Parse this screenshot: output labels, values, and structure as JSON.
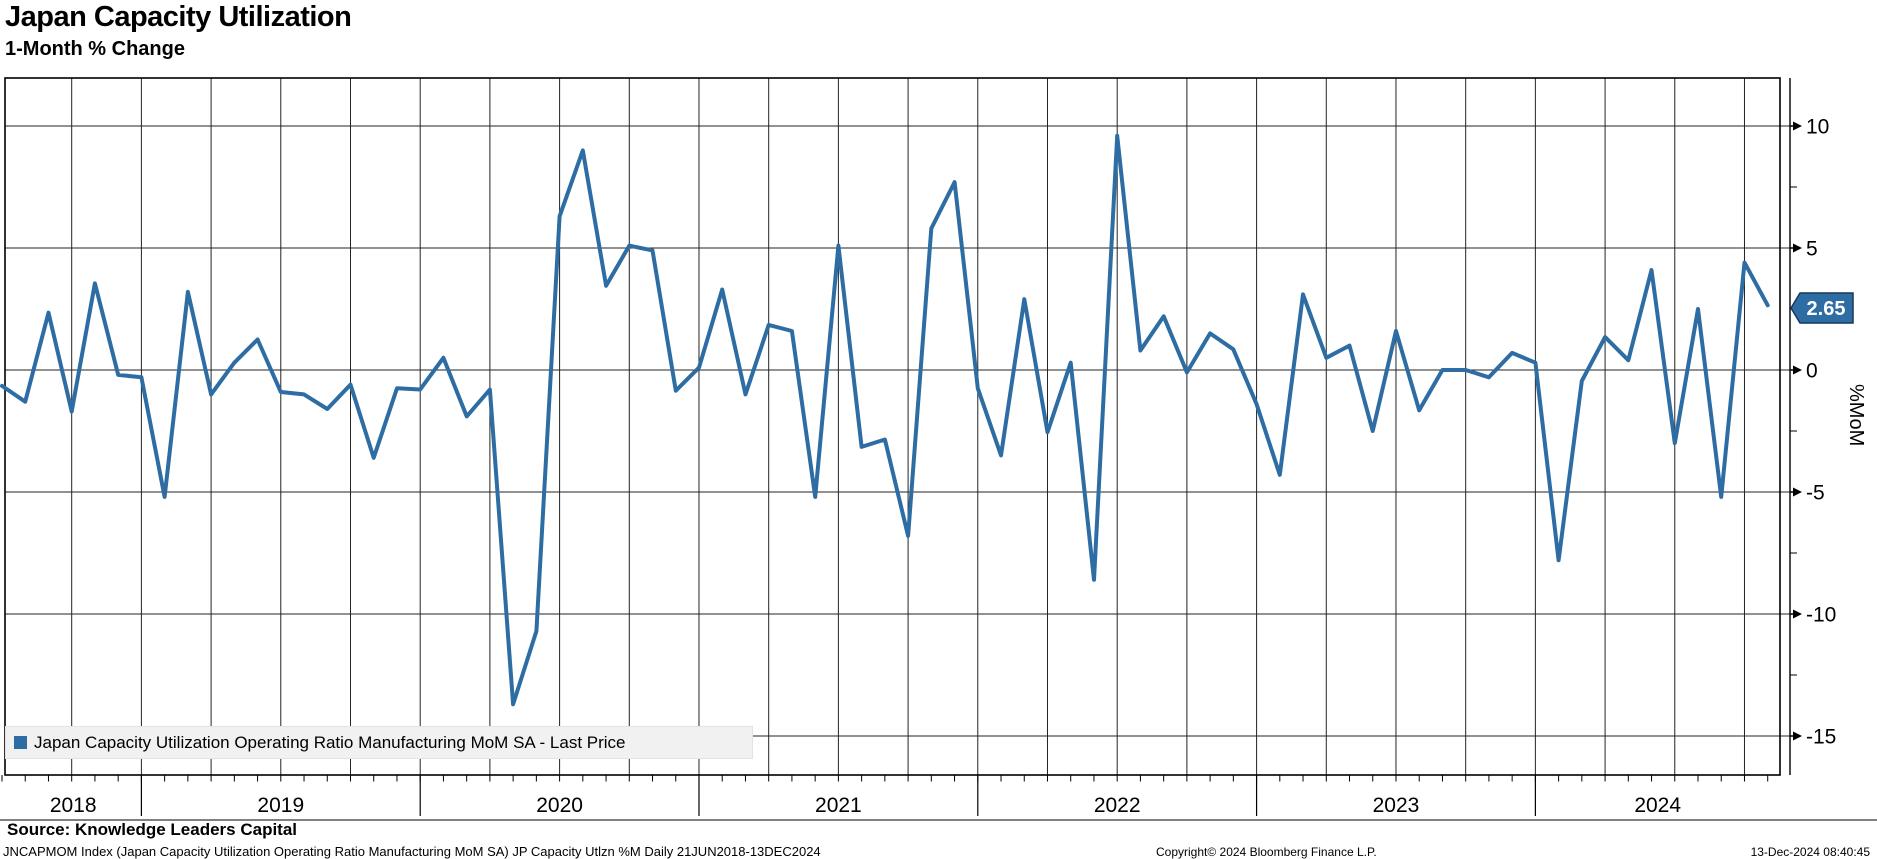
{
  "header": {
    "title": "Japan Capacity Utilization",
    "subtitle": "1-Month % Change"
  },
  "legend": {
    "label": "Japan Capacity Utilization Operating Ratio Manufacturing MoM SA - Last Price"
  },
  "y_axis": {
    "unit_label": "%MoM",
    "last_price": "2.65"
  },
  "footer": {
    "source": "Source: Knowledge Leaders Capital",
    "ticker_line": "JNCAPMOM Index (Japan Capacity Utilization Operating Ratio Manufacturing MoM SA) JP Capacity Utlzn %M  Daily 21JUN2018-13DEC2024",
    "copyright": "Copyright© 2024 Bloomberg Finance L.P.",
    "timestamp": "13-Dec-2024 08:40:45"
  },
  "chart_data": {
    "type": "line",
    "title": "Japan Capacity Utilization",
    "subtitle": "1-Month % Change",
    "ylabel": "%MoM",
    "ylim": [
      -16.3,
      12
    ],
    "yticks_major": [
      10,
      5,
      0,
      -5,
      -10,
      -15
    ],
    "yticks_minor": [
      7.5,
      2.5,
      -2.5,
      -7.5,
      -12.5
    ],
    "x_year_labels": [
      "2018",
      "2019",
      "2020",
      "2021",
      "2022",
      "2023",
      "2024"
    ],
    "grid": "on",
    "legend_position": "bottom-left",
    "date_range": "21JUN2018-13DEC2024",
    "last_price": 2.65,
    "x": [
      "Jun 2018",
      "Jul 2018",
      "Aug 2018",
      "Sep 2018",
      "Oct 2018",
      "Nov 2018",
      "Dec 2018",
      "Jan 2019",
      "Feb 2019",
      "Mar 2019",
      "Apr 2019",
      "May 2019",
      "Jun 2019",
      "Jul 2019",
      "Aug 2019",
      "Sep 2019",
      "Oct 2019",
      "Nov 2019",
      "Dec 2019",
      "Jan 2020",
      "Feb 2020",
      "Mar 2020",
      "Apr 2020",
      "May 2020",
      "Jun 2020",
      "Jul 2020",
      "Aug 2020",
      "Sep 2020",
      "Oct 2020",
      "Nov 2020",
      "Dec 2020",
      "Jan 2021",
      "Feb 2021",
      "Mar 2021",
      "Apr 2021",
      "May 2021",
      "Jun 2021",
      "Jul 2021",
      "Aug 2021",
      "Sep 2021",
      "Oct 2021",
      "Nov 2021",
      "Dec 2021",
      "Jan 2022",
      "Feb 2022",
      "Mar 2022",
      "Apr 2022",
      "May 2022",
      "Jun 2022",
      "Jul 2022",
      "Aug 2022",
      "Sep 2022",
      "Oct 2022",
      "Nov 2022",
      "Dec 2022",
      "Jan 2023",
      "Feb 2023",
      "Mar 2023",
      "Apr 2023",
      "May 2023",
      "Jun 2023",
      "Jul 2023",
      "Aug 2023",
      "Sep 2023",
      "Oct 2023",
      "Nov 2023",
      "Dec 2023",
      "Jan 2024",
      "Feb 2024",
      "Mar 2024",
      "Apr 2024",
      "May 2024",
      "Jun 2024",
      "Jul 2024",
      "Aug 2024",
      "Sep 2024",
      "Oct 2024"
    ],
    "series": [
      {
        "name": "Japan Capacity Utilization Operating Ratio Manufacturing MoM SA - Last Price",
        "color": "#2d6da3",
        "values": [
          -0.65,
          -1.3,
          2.35,
          -1.7,
          3.55,
          -0.2,
          -0.3,
          -5.2,
          3.2,
          -1.0,
          0.3,
          1.25,
          -0.9,
          -1.0,
          -1.6,
          -0.6,
          -3.6,
          -0.75,
          -0.8,
          0.5,
          -1.9,
          -0.8,
          -13.7,
          -10.7,
          6.3,
          9.0,
          3.45,
          5.1,
          4.9,
          -0.85,
          0.1,
          3.3,
          -1.0,
          1.85,
          1.6,
          -5.2,
          5.1,
          -3.15,
          -2.85,
          -6.8,
          5.8,
          7.7,
          -0.75,
          -3.5,
          2.9,
          -2.55,
          0.3,
          -8.6,
          9.6,
          0.8,
          2.2,
          -0.1,
          1.5,
          0.85,
          -1.4,
          -4.3,
          3.1,
          0.5,
          1.0,
          -2.5,
          1.6,
          -1.65,
          0.0,
          0.0,
          -0.3,
          0.7,
          0.3,
          -7.8,
          -0.45,
          1.35,
          0.4,
          4.1,
          -3.0,
          2.5,
          -5.2,
          4.4,
          2.65
        ]
      }
    ]
  }
}
